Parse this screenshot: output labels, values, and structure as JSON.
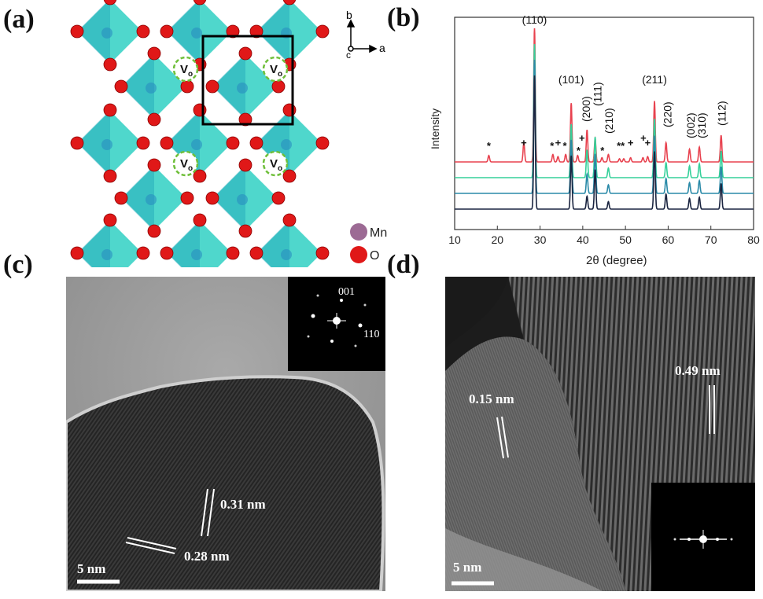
{
  "figure": {
    "panels": {
      "a": "(a)",
      "b": "(b)",
      "c": "(c)",
      "d": "(d)"
    }
  },
  "panel_a": {
    "axis_b": "b",
    "axis_c": "c",
    "axis_a": "a",
    "vacancy_symbol": "V",
    "vacancy_subscript": "o",
    "legend": [
      {
        "label": "Mn",
        "color": "#9c6a94"
      },
      {
        "label": "O",
        "color": "#e01818"
      }
    ],
    "colors": {
      "octahedron": "#4fd7cc",
      "octahedron_dark": "#1ea5b8"
    }
  },
  "panel_c": {
    "inset_labels": [
      "001",
      "110"
    ],
    "fringe_labels": [
      "0.31 nm",
      "0.28 nm"
    ],
    "scale_bar": "5 nm"
  },
  "panel_d": {
    "fringe_labels": [
      "0.15 nm",
      "0.49 nm"
    ],
    "scale_bar": "5 nm"
  },
  "chart_data": {
    "type": "line",
    "xlabel": "2θ (degree)",
    "ylabel": "Intensity",
    "xlim": [
      10,
      80
    ],
    "xticks": [
      10,
      20,
      30,
      40,
      50,
      60,
      70,
      80
    ],
    "series": [
      {
        "color": "#e8424f",
        "peaks": [
          [
            18,
            0.06
          ],
          [
            26.2,
            0.18
          ],
          [
            28.7,
            1.25
          ],
          [
            33,
            0.07
          ],
          [
            34.2,
            0.05
          ],
          [
            36,
            0.07
          ],
          [
            37.3,
            0.55
          ],
          [
            38.8,
            0.06
          ],
          [
            41,
            0.3
          ],
          [
            42.9,
            0.22
          ],
          [
            44.5,
            0.04
          ],
          [
            46,
            0.07
          ],
          [
            48.6,
            0.03
          ],
          [
            49.6,
            0.03
          ],
          [
            51.2,
            0.04
          ],
          [
            54.1,
            0.04
          ],
          [
            55.2,
            0.05
          ],
          [
            56.8,
            0.57
          ],
          [
            59.5,
            0.18
          ],
          [
            65,
            0.12
          ],
          [
            67.3,
            0.14
          ],
          [
            72.4,
            0.25
          ]
        ]
      },
      {
        "color": "#35d09a",
        "peaks": [
          [
            28.7,
            1.25
          ],
          [
            37.3,
            0.5
          ],
          [
            41,
            0.26
          ],
          [
            42.9,
            0.38
          ],
          [
            46,
            0.09
          ],
          [
            56.8,
            0.55
          ],
          [
            59.5,
            0.14
          ],
          [
            65,
            0.11
          ],
          [
            67.3,
            0.13
          ],
          [
            72.4,
            0.25
          ]
        ]
      },
      {
        "color": "#2a8aa8",
        "peaks": [
          [
            28.7,
            1.25
          ],
          [
            37.3,
            0.5
          ],
          [
            41,
            0.18
          ],
          [
            42.9,
            0.37
          ],
          [
            46,
            0.08
          ],
          [
            56.8,
            0.54
          ],
          [
            59.5,
            0.14
          ],
          [
            65,
            0.1
          ],
          [
            67.3,
            0.12
          ],
          [
            72.4,
            0.25
          ]
        ]
      },
      {
        "color": "#1a2440",
        "peaks": [
          [
            28.7,
            1.25
          ],
          [
            37.3,
            0.5
          ],
          [
            41,
            0.12
          ],
          [
            42.9,
            0.37
          ],
          [
            46,
            0.07
          ],
          [
            56.8,
            0.54
          ],
          [
            59.5,
            0.14
          ],
          [
            65,
            0.1
          ],
          [
            67.3,
            0.11
          ],
          [
            72.4,
            0.24
          ]
        ]
      }
    ],
    "peak_labels": [
      {
        "text": "(110)",
        "x": 28.7,
        "vertical": false
      },
      {
        "text": "(101)",
        "x": 37.3,
        "vertical": false
      },
      {
        "text": "(200)",
        "x": 40.8,
        "vertical": true
      },
      {
        "text": "(111)",
        "x": 43.4,
        "vertical": true
      },
      {
        "text": "(210)",
        "x": 46.1,
        "vertical": true
      },
      {
        "text": "(211)",
        "x": 56.8,
        "vertical": false
      },
      {
        "text": "(220)",
        "x": 59.8,
        "vertical": true
      },
      {
        "text": "(002)",
        "x": 65.3,
        "vertical": true
      },
      {
        "text": "(310)",
        "x": 67.8,
        "vertical": true
      },
      {
        "text": "(112)",
        "x": 72.5,
        "vertical": true
      }
    ],
    "impurity_marks": [
      {
        "sym": "*",
        "x": 18
      },
      {
        "sym": "+",
        "x": 26.2
      },
      {
        "sym": "*",
        "x": 32.8
      },
      {
        "sym": "+",
        "x": 34.2
      },
      {
        "sym": "*",
        "x": 35.8
      },
      {
        "sym": "*",
        "x": 39
      },
      {
        "sym": "+",
        "x": 39.8
      },
      {
        "sym": "*",
        "x": 44.6
      },
      {
        "sym": "**",
        "x": 48.9
      },
      {
        "sym": "+",
        "x": 51.2
      },
      {
        "sym": "+",
        "x": 54.2
      },
      {
        "sym": "+",
        "x": 55.2
      }
    ]
  }
}
